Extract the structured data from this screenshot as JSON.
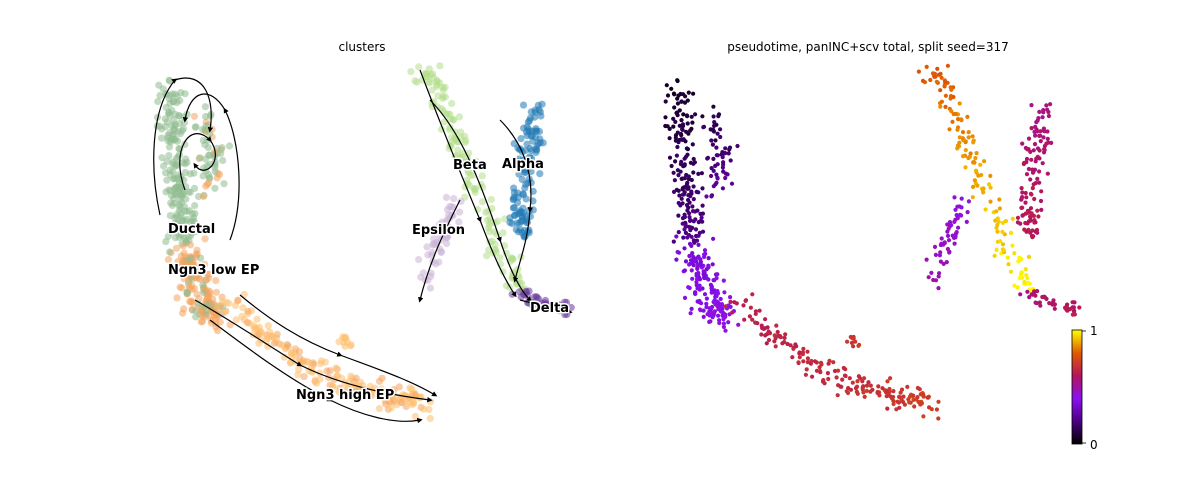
{
  "chart_data": [
    {
      "type": "scatter",
      "title": "clusters",
      "legend": "on data",
      "streamlines": true,
      "clusters": [
        {
          "name": "Ductal",
          "color": "#8fbc8f"
        },
        {
          "name": "Ngn3 low EP",
          "color": "#f4a460"
        },
        {
          "name": "Ngn3 high EP",
          "color": "#fdbf6f"
        },
        {
          "name": "Beta",
          "color": "#b2df8a"
        },
        {
          "name": "Alpha",
          "color": "#1f78b4"
        },
        {
          "name": "Epsilon",
          "color": "#cab2d6"
        },
        {
          "name": "Delta",
          "color": "#6a3d9a"
        }
      ]
    },
    {
      "type": "scatter",
      "title": "pseudotime, panINC+scv total, split seed=317",
      "colormap": "gnuplot",
      "colorbar": {
        "min": 0,
        "max": 1,
        "tick_labels": [
          "0",
          "1"
        ]
      }
    }
  ]
}
